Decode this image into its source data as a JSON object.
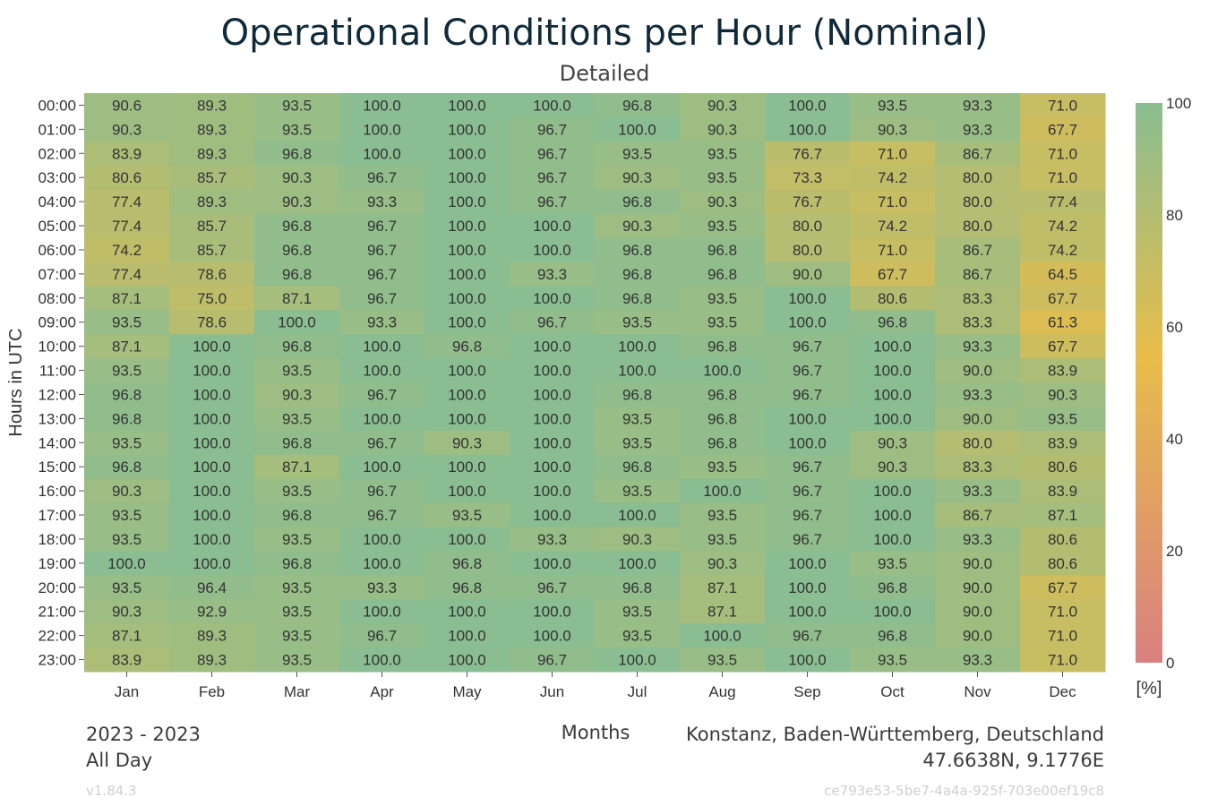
{
  "chart_data": {
    "type": "heatmap",
    "title": "Operational Conditions per Hour (Nominal)",
    "subtitle": "Detailed",
    "xlabel": "Months",
    "ylabel": "Hours in UTC",
    "x_categories": [
      "Jan",
      "Feb",
      "Mar",
      "Apr",
      "May",
      "Jun",
      "Jul",
      "Aug",
      "Sep",
      "Oct",
      "Nov",
      "Dec"
    ],
    "y_categories": [
      "00:00",
      "01:00",
      "02:00",
      "03:00",
      "04:00",
      "05:00",
      "06:00",
      "07:00",
      "08:00",
      "09:00",
      "10:00",
      "11:00",
      "12:00",
      "13:00",
      "14:00",
      "15:00",
      "16:00",
      "17:00",
      "18:00",
      "19:00",
      "20:00",
      "21:00",
      "22:00",
      "23:00"
    ],
    "values": [
      [
        "90.6",
        "89.3",
        "93.5",
        "100.0",
        "100.0",
        "100.0",
        "96.8",
        "90.3",
        "100.0",
        "93.5",
        "93.3",
        "71.0"
      ],
      [
        "90.3",
        "89.3",
        "93.5",
        "100.0",
        "100.0",
        "96.7",
        "100.0",
        "90.3",
        "100.0",
        "90.3",
        "93.3",
        "67.7"
      ],
      [
        "83.9",
        "89.3",
        "96.8",
        "100.0",
        "100.0",
        "96.7",
        "93.5",
        "93.5",
        "76.7",
        "71.0",
        "86.7",
        "71.0"
      ],
      [
        "80.6",
        "85.7",
        "90.3",
        "96.7",
        "100.0",
        "96.7",
        "90.3",
        "93.5",
        "73.3",
        "74.2",
        "80.0",
        "71.0"
      ],
      [
        "77.4",
        "89.3",
        "90.3",
        "93.3",
        "100.0",
        "96.7",
        "96.8",
        "90.3",
        "76.7",
        "71.0",
        "80.0",
        "77.4"
      ],
      [
        "77.4",
        "85.7",
        "96.8",
        "96.7",
        "100.0",
        "100.0",
        "90.3",
        "93.5",
        "80.0",
        "74.2",
        "80.0",
        "74.2"
      ],
      [
        "74.2",
        "85.7",
        "96.8",
        "96.7",
        "100.0",
        "100.0",
        "96.8",
        "96.8",
        "80.0",
        "71.0",
        "86.7",
        "74.2"
      ],
      [
        "77.4",
        "78.6",
        "96.8",
        "96.7",
        "100.0",
        "93.3",
        "96.8",
        "96.8",
        "90.0",
        "67.7",
        "86.7",
        "64.5"
      ],
      [
        "87.1",
        "75.0",
        "87.1",
        "96.7",
        "100.0",
        "100.0",
        "96.8",
        "93.5",
        "100.0",
        "80.6",
        "83.3",
        "67.7"
      ],
      [
        "93.5",
        "78.6",
        "100.0",
        "93.3",
        "100.0",
        "96.7",
        "93.5",
        "93.5",
        "100.0",
        "96.8",
        "83.3",
        "61.3"
      ],
      [
        "87.1",
        "100.0",
        "96.8",
        "100.0",
        "96.8",
        "100.0",
        "100.0",
        "96.8",
        "96.7",
        "100.0",
        "93.3",
        "67.7"
      ],
      [
        "93.5",
        "100.0",
        "93.5",
        "100.0",
        "100.0",
        "100.0",
        "100.0",
        "100.0",
        "96.7",
        "100.0",
        "90.0",
        "83.9"
      ],
      [
        "96.8",
        "100.0",
        "90.3",
        "96.7",
        "100.0",
        "100.0",
        "96.8",
        "96.8",
        "96.7",
        "100.0",
        "93.3",
        "90.3"
      ],
      [
        "96.8",
        "100.0",
        "93.5",
        "100.0",
        "100.0",
        "100.0",
        "93.5",
        "96.8",
        "100.0",
        "100.0",
        "90.0",
        "93.5"
      ],
      [
        "93.5",
        "100.0",
        "96.8",
        "96.7",
        "90.3",
        "100.0",
        "93.5",
        "96.8",
        "100.0",
        "90.3",
        "80.0",
        "83.9"
      ],
      [
        "96.8",
        "100.0",
        "87.1",
        "100.0",
        "100.0",
        "100.0",
        "96.8",
        "93.5",
        "96.7",
        "90.3",
        "83.3",
        "80.6"
      ],
      [
        "90.3",
        "100.0",
        "93.5",
        "96.7",
        "100.0",
        "100.0",
        "93.5",
        "100.0",
        "96.7",
        "100.0",
        "93.3",
        "83.9"
      ],
      [
        "93.5",
        "100.0",
        "96.8",
        "96.7",
        "93.5",
        "100.0",
        "100.0",
        "93.5",
        "96.7",
        "100.0",
        "86.7",
        "87.1"
      ],
      [
        "93.5",
        "100.0",
        "93.5",
        "100.0",
        "100.0",
        "93.3",
        "90.3",
        "93.5",
        "96.7",
        "100.0",
        "93.3",
        "80.6"
      ],
      [
        "100.0",
        "100.0",
        "96.8",
        "100.0",
        "96.8",
        "100.0",
        "100.0",
        "90.3",
        "100.0",
        "93.5",
        "90.0",
        "80.6"
      ],
      [
        "93.5",
        "96.4",
        "93.5",
        "93.3",
        "96.8",
        "96.7",
        "96.8",
        "87.1",
        "100.0",
        "96.8",
        "90.0",
        "67.7"
      ],
      [
        "90.3",
        "92.9",
        "93.5",
        "100.0",
        "100.0",
        "100.0",
        "93.5",
        "87.1",
        "100.0",
        "100.0",
        "90.0",
        "71.0"
      ],
      [
        "87.1",
        "89.3",
        "93.5",
        "96.7",
        "100.0",
        "100.0",
        "93.5",
        "100.0",
        "96.7",
        "96.8",
        "90.0",
        "71.0"
      ],
      [
        "83.9",
        "89.3",
        "93.5",
        "100.0",
        "100.0",
        "96.7",
        "100.0",
        "93.5",
        "100.0",
        "93.5",
        "93.3",
        "71.0"
      ]
    ],
    "colorbar": {
      "range": [
        0,
        100
      ],
      "ticks": [
        "0",
        "20",
        "40",
        "60",
        "80",
        "100"
      ],
      "unit": "[%]",
      "colors": [
        "#d98080",
        "#e8bd4a",
        "#8abd91"
      ]
    }
  },
  "footer": {
    "years": "2023 - 2023",
    "period": "All Day",
    "location": "Konstanz, Baden-Württemberg, Deutschland",
    "coordinates": "47.6638N, 9.1776E",
    "version": "v1.84.3",
    "uuid": "ce793e53-5be7-4a4a-925f-703e00ef19c8"
  }
}
